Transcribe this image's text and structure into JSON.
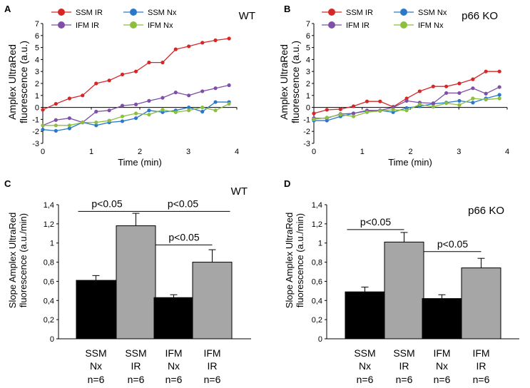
{
  "colors": {
    "ssm_ir": "#d62728",
    "ssm_nx": "#2a78c9",
    "ifm_ir": "#7e4fa8",
    "ifm_nx": "#8cbf3f",
    "bar_nx": "#000000",
    "bar_ir": "#a6a6a6"
  },
  "chart_data": [
    {
      "panel": "A",
      "type": "line",
      "condition": "WT",
      "xlabel": "Time (min)",
      "ylabel": "Amplex  UltraRed fluorescence (a.u.)",
      "xlim": [
        0,
        4
      ],
      "ylim": [
        -3,
        7
      ],
      "xticks": [
        "0",
        "1",
        "2",
        "3",
        "4"
      ],
      "yticks": [
        "-3",
        "-2",
        "-1",
        "0",
        "1",
        "2",
        "3",
        "4",
        "5",
        "6",
        "7"
      ],
      "x": [
        0,
        0.27,
        0.55,
        0.82,
        1.1,
        1.37,
        1.64,
        1.92,
        2.19,
        2.47,
        2.74,
        3.01,
        3.29,
        3.56,
        3.84
      ],
      "series": [
        {
          "name": "SSM IR",
          "key": "ssm_ir",
          "values": [
            -0.2,
            0.3,
            0.75,
            1.0,
            2.0,
            2.25,
            2.75,
            3.0,
            3.75,
            3.75,
            4.85,
            5.1,
            5.4,
            5.6,
            5.75
          ]
        },
        {
          "name": "SSM Nx",
          "key": "ssm_nx",
          "values": [
            -1.85,
            -1.95,
            -1.75,
            -1.25,
            -1.5,
            -1.25,
            -1.15,
            -0.9,
            -0.25,
            -0.4,
            -0.25,
            0.0,
            -0.35,
            0.45,
            0.45
          ]
        },
        {
          "name": "IFM IR",
          "key": "ifm_ir",
          "values": [
            -1.5,
            -1.05,
            -0.9,
            -1.25,
            -0.35,
            -0.25,
            0.15,
            0.25,
            0.55,
            0.8,
            1.25,
            1.0,
            1.35,
            1.6,
            1.85
          ]
        },
        {
          "name": "IFM Nx",
          "key": "ifm_nx",
          "values": [
            -1.5,
            -1.5,
            -1.5,
            -1.25,
            -1.25,
            -1.1,
            -0.75,
            -0.5,
            -0.6,
            -0.2,
            -0.4,
            -0.25,
            0.0,
            -0.25,
            0.3
          ]
        }
      ]
    },
    {
      "panel": "B",
      "type": "line",
      "condition": "p66 KO",
      "xlabel": "Time (min)",
      "ylabel": "Amplex  UltraRed fluorescence (a.u.)",
      "xlim": [
        0,
        4
      ],
      "ylim": [
        -3,
        7
      ],
      "xticks": [
        "0",
        "1",
        "2",
        "3",
        "4"
      ],
      "yticks": [
        "-3",
        "-2",
        "-1",
        "0",
        "1",
        "2",
        "3",
        "4",
        "5",
        "6",
        "7"
      ],
      "x": [
        0,
        0.27,
        0.55,
        0.82,
        1.1,
        1.37,
        1.64,
        1.92,
        2.19,
        2.47,
        2.74,
        3.01,
        3.29,
        3.56,
        3.84
      ],
      "series": [
        {
          "name": "SSM IR",
          "key": "ssm_ir",
          "values": [
            -0.5,
            -0.2,
            -0.15,
            0.1,
            0.5,
            0.5,
            0.05,
            0.75,
            1.35,
            1.75,
            1.75,
            2.0,
            2.35,
            3.0,
            3.0
          ]
        },
        {
          "name": "SSM Nx",
          "key": "ssm_nx",
          "values": [
            -1.1,
            -1.1,
            -0.75,
            -0.5,
            -0.3,
            -0.25,
            -0.4,
            -0.05,
            0.1,
            0.3,
            0.4,
            0.55,
            0.4,
            0.75,
            1.05
          ]
        },
        {
          "name": "IFM IR",
          "key": "ifm_ir",
          "values": [
            -0.9,
            -0.9,
            -0.55,
            -0.5,
            -0.25,
            -0.25,
            0.0,
            0.55,
            0.4,
            0.35,
            1.2,
            1.2,
            1.6,
            1.15,
            1.7
          ]
        },
        {
          "name": "IFM Nx",
          "key": "ifm_nx",
          "values": [
            -1.0,
            -0.85,
            -0.6,
            -0.75,
            -0.4,
            -0.3,
            -0.2,
            -0.25,
            0.25,
            0.05,
            0.35,
            0.2,
            0.75,
            0.65,
            0.75
          ]
        }
      ]
    },
    {
      "panel": "C",
      "type": "bar",
      "condition": "WT",
      "ylabel": "Slope Amplex  UltraRed fluorescence (a.u./min)",
      "ylim": [
        0,
        1.4
      ],
      "yticks": [
        "0",
        "0,2",
        "0,4",
        "0,6",
        "0,8",
        "1",
        "1,2",
        "1,4"
      ],
      "categories": [
        {
          "line1": "SSM",
          "line2": "Nx",
          "line3": "n=6",
          "type": "nx"
        },
        {
          "line1": "SSM",
          "line2": "IR",
          "line3": "n=6",
          "type": "ir"
        },
        {
          "line1": "IFM",
          "line2": "Nx",
          "line3": "n=6",
          "type": "nx"
        },
        {
          "line1": "IFM",
          "line2": "IR",
          "line3": "n=6",
          "type": "ir"
        }
      ],
      "values": [
        0.61,
        1.18,
        0.43,
        0.8
      ],
      "errors": [
        0.05,
        0.13,
        0.03,
        0.13
      ],
      "annotations": [
        {
          "text": "p<0.05",
          "from": 0,
          "to": 1,
          "level": 1.33
        },
        {
          "text": "p<0.05",
          "from": 1,
          "to": 3,
          "level": 1.33
        },
        {
          "text": "p<0.05",
          "from": 2,
          "to": 3,
          "level": 0.98
        }
      ]
    },
    {
      "panel": "D",
      "type": "bar",
      "condition": "p66 KO",
      "ylabel": "Slope Amplex  UltraRed fluorescence (a.u./min)",
      "ylim": [
        0,
        1.4
      ],
      "yticks": [
        "0",
        "0,2",
        "0,4",
        "0,6",
        "0,8",
        "1",
        "1,2",
        "1,4"
      ],
      "categories": [
        {
          "line1": "SSM",
          "line2": "Nx",
          "line3": "n=6",
          "type": "nx"
        },
        {
          "line1": "SSM",
          "line2": "IR",
          "line3": "n=6",
          "type": "ir"
        },
        {
          "line1": "IFM",
          "line2": "Nx",
          "line3": "n=6",
          "type": "nx"
        },
        {
          "line1": "IFM",
          "line2": "IR",
          "line3": "n=6",
          "type": "ir"
        }
      ],
      "values": [
        0.49,
        1.01,
        0.42,
        0.74
      ],
      "errors": [
        0.05,
        0.1,
        0.04,
        0.1
      ],
      "annotations": [
        {
          "text": "p<0.05",
          "from": 0,
          "to": 1,
          "level": 1.14
        },
        {
          "text": "p<0.05",
          "from": 2,
          "to": 3,
          "level": 0.91
        }
      ]
    }
  ]
}
